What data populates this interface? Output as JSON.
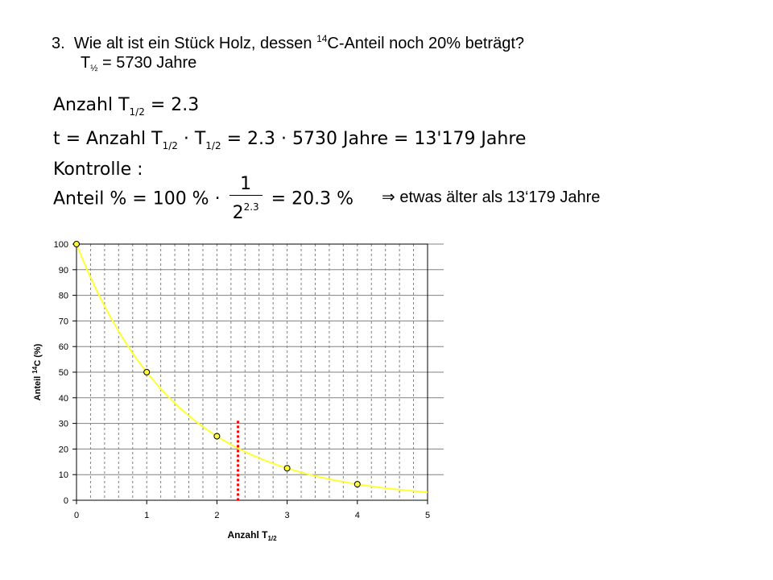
{
  "question": {
    "number": "3.",
    "text_before": "Wie alt ist ein Stück Holz, dessen",
    "superscript": "14",
    "text_after": "C-Anteil noch 20% beträgt?",
    "halflife_symbol": "T",
    "halflife_sub": "½",
    "halflife_value": "= 5730 Jahre"
  },
  "math": {
    "line1": {
      "lhs": "Anzahl T",
      "sub": "1/2",
      "rhs": "= 2.3"
    },
    "line2": {
      "t": "t = Anzahl T",
      "sub1": "1/2",
      "dot": " · T",
      "sub2": "1/2",
      "rhs": " = 2.3 · 5730 Jahre = 13'179 Jahre"
    },
    "line3": "Kontrolle :",
    "line4": {
      "lhs": "Anteil % = 100 % ·",
      "num": "1",
      "den_base": "2",
      "den_exp": "2.3",
      "rhs": "= 20.3 %"
    }
  },
  "conclusion": {
    "arrow": "⇒",
    "text": "etwas älter als 13‘179 Jahre"
  },
  "chart_data": {
    "type": "line",
    "xlabel": "Anzahl T1/2",
    "ylabel": "Anteil 14C (%)",
    "xlim": [
      0,
      5
    ],
    "ylim": [
      0,
      100
    ],
    "xticks": [
      0,
      1,
      2,
      3,
      4,
      5
    ],
    "yticks": [
      0,
      10,
      20,
      30,
      40,
      50,
      60,
      70,
      80,
      90,
      100
    ],
    "grid": "vertical dashed every 0.2, horizontal solid every 10",
    "curve": "y = 100 * 0.5^x",
    "points": [
      {
        "x": 0,
        "y": 100
      },
      {
        "x": 1,
        "y": 50
      },
      {
        "x": 2,
        "y": 25
      },
      {
        "x": 3,
        "y": 12.5
      },
      {
        "x": 4,
        "y": 6.25
      }
    ],
    "marker_line": {
      "x": 2.3,
      "y_max": 31
    },
    "colors": {
      "curve": "#ffff33",
      "marker_fill": "#ffff33",
      "marker_line": "#ff0000",
      "grid": "#808080"
    }
  }
}
